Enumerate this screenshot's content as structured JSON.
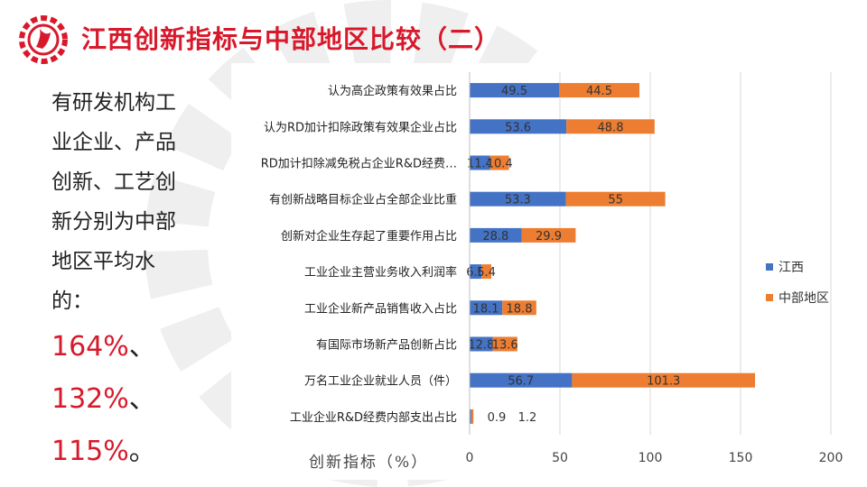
{
  "slide": {
    "title": "江西创新指标与中部地区比较（二）",
    "text_lines": [
      "有研发机构工",
      "业企业、产品",
      "创新、工艺创",
      "新分别为中部",
      "地区平均水",
      "的："
    ],
    "percent_lines": [
      {
        "value": "164%",
        "tail": "、"
      },
      {
        "value": "132%",
        "tail": "、"
      },
      {
        "value": "115%",
        "tail": "。"
      }
    ],
    "accent_color": "#d7192b",
    "logo_icon": "gear-logo-icon"
  },
  "chart_data": {
    "type": "bar",
    "orientation": "horizontal",
    "stacked": true,
    "xlabel": "创新指标（%）",
    "xlim": [
      0,
      200
    ],
    "xticks": [
      "0",
      "50",
      "100",
      "150",
      "200"
    ],
    "grid": true,
    "legend_position": "right",
    "categories": [
      "认为高企政策有效果占比",
      "认为RD加计扣除政策有效果企业占比",
      "RD加计扣除减免税占企业R&D经费…",
      "有创新战略目标企业占全部企业比重",
      "创新对企业生存起了重要作用占比",
      "工业企业主营业务收入利润率",
      "工业企业新产品销售收入占比",
      "有国际市场新产品创新占比",
      "万名工业企业就业人员（件）",
      "工业企业R&D经费内部支出占比"
    ],
    "series": [
      {
        "name": "江西",
        "color": "#4472c4",
        "values": [
          49.5,
          53.6,
          11.4,
          53.3,
          28.8,
          6.6,
          18.1,
          12.8,
          56.7,
          0.9
        ],
        "labels": [
          "49.5",
          "53.6",
          "11.4",
          "53.3",
          "28.8",
          "6.6",
          "18.1",
          "12.8",
          "56.7",
          "0.9"
        ]
      },
      {
        "name": "中部地区",
        "color": "#ed7d31",
        "values": [
          44.5,
          48.8,
          10.4,
          55,
          29.9,
          5.4,
          18.8,
          13.6,
          101.3,
          1.2
        ],
        "labels": [
          "44.5",
          "48.8",
          "10.4",
          "55",
          "29.9",
          "5.4",
          "18.8",
          "13.6",
          "101.3",
          "1.2"
        ]
      }
    ]
  }
}
